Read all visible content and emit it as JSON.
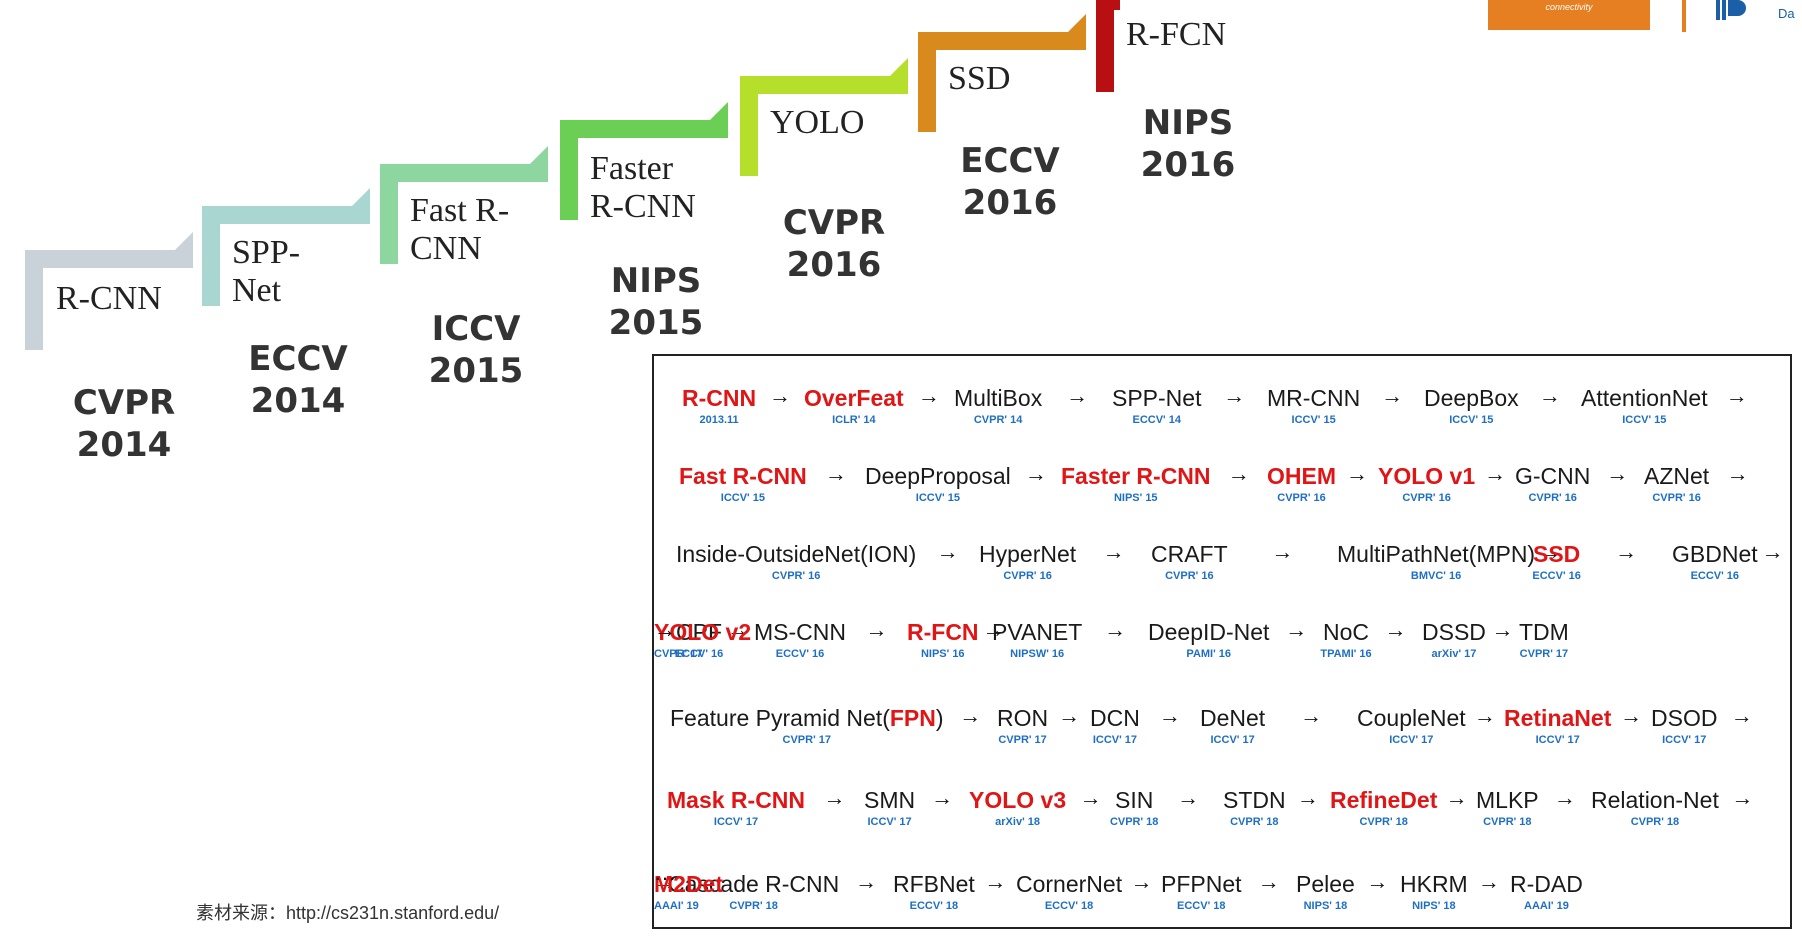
{
  "timeline": [
    {
      "name": [
        "R-CNN"
      ],
      "venue": [
        "CVPR",
        "2014"
      ],
      "color": "#c8d2d8"
    },
    {
      "name": [
        "SPP-",
        "Net"
      ],
      "venue": [
        "ECCV",
        "2014"
      ],
      "color": "#a9d6d0"
    },
    {
      "name": [
        "Fast R-",
        "CNN"
      ],
      "venue": [
        "ICCV",
        "2015"
      ],
      "color": "#8ed6a0"
    },
    {
      "name": [
        "Faster",
        "R-CNN"
      ],
      "venue": [
        "NIPS",
        "2015"
      ],
      "color": "#6ccf55"
    },
    {
      "name": [
        "YOLO"
      ],
      "venue": [
        "CVPR",
        "2016"
      ],
      "color": "#b5df2a"
    },
    {
      "name": [
        "SSD"
      ],
      "venue": [
        "ECCV",
        "2016"
      ],
      "color": "#d98a1c"
    },
    {
      "name": [
        "R-FCN"
      ],
      "venue": [
        "NIPS",
        "2016"
      ],
      "color": "#b80f12"
    }
  ],
  "network_list": {
    "rows": [
      [
        {
          "name": "R-CNN",
          "venue": "2013.11",
          "highlight": true
        },
        {
          "name": "OverFeat",
          "venue": "ICLR' 14",
          "highlight": true
        },
        {
          "name": "MultiBox",
          "venue": "CVPR' 14"
        },
        {
          "name": "SPP-Net",
          "venue": "ECCV' 14"
        },
        {
          "name": "MR-CNN",
          "venue": "ICCV' 15"
        },
        {
          "name": "DeepBox",
          "venue": "ICCV' 15"
        },
        {
          "name": "AttentionNet",
          "venue": "ICCV' 15"
        }
      ],
      [
        {
          "name": "Fast R-CNN",
          "venue": "ICCV' 15",
          "highlight": true
        },
        {
          "name": "DeepProposal",
          "venue": "ICCV' 15"
        },
        {
          "name": "Faster R-CNN",
          "venue": "NIPS' 15",
          "highlight": true
        },
        {
          "name": "OHEM",
          "venue": "CVPR' 16",
          "highlight": true
        },
        {
          "name": "YOLO v1",
          "venue": "CVPR' 16",
          "highlight": true
        },
        {
          "name": "G-CNN",
          "venue": "CVPR' 16"
        },
        {
          "name": "AZNet",
          "venue": "CVPR' 16"
        }
      ],
      [
        {
          "name": "Inside-OutsideNet(ION)",
          "venue": "CVPR' 16"
        },
        {
          "name": "HyperNet",
          "venue": "CVPR' 16"
        },
        {
          "name": "CRAFT",
          "venue": "CVPR' 16"
        },
        {
          "name": "MultiPathNet(MPN)",
          "venue": "BMVC' 16"
        },
        {
          "name": "SSD",
          "venue": "ECCV' 16",
          "highlight": true
        },
        {
          "name": "GBDNet",
          "venue": "ECCV' 16"
        }
      ],
      [
        {
          "name": "CPF",
          "venue": "ECCV' 16"
        },
        {
          "name": "MS-CNN",
          "venue": "ECCV' 16"
        },
        {
          "name": "R-FCN",
          "venue": "NIPS' 16",
          "highlight": true
        },
        {
          "name": "PVANET",
          "venue": "NIPSW' 16"
        },
        {
          "name": "DeepID-Net",
          "venue": "PAMI' 16"
        },
        {
          "name": "NoC",
          "venue": "TPAMI' 16"
        },
        {
          "name": "DSSD",
          "venue": "arXiv' 17"
        },
        {
          "name": "TDM",
          "venue": "CVPR' 17"
        },
        {
          "name": "YOLO v2",
          "venue": "CVPR' 17",
          "highlight": true
        }
      ],
      [
        {
          "name": "Feature Pyramid Net(",
          "name_red": "FPN",
          "name_after": ")",
          "venue": "CVPR' 17"
        },
        {
          "name": "RON",
          "venue": "CVPR' 17"
        },
        {
          "name": "DCN",
          "venue": "ICCV' 17"
        },
        {
          "name": "DeNet",
          "venue": "ICCV' 17"
        },
        {
          "name": "CoupleNet",
          "venue": "ICCV' 17"
        },
        {
          "name": "RetinaNet",
          "venue": "ICCV' 17",
          "highlight": true
        },
        {
          "name": "DSOD",
          "venue": "ICCV' 17"
        }
      ],
      [
        {
          "name": "Mask R-CNN",
          "venue": "ICCV' 17",
          "highlight": true
        },
        {
          "name": "SMN",
          "venue": "ICCV' 17"
        },
        {
          "name": "YOLO v3",
          "venue": "arXiv' 18",
          "highlight": true
        },
        {
          "name": "SIN",
          "venue": "CVPR' 18"
        },
        {
          "name": "STDN",
          "venue": "CVPR' 18"
        },
        {
          "name": "RefineDet",
          "venue": "CVPR' 18",
          "highlight": true
        },
        {
          "name": "MLKP",
          "venue": "CVPR' 18"
        },
        {
          "name": "Relation-Net",
          "venue": "CVPR' 18"
        }
      ],
      [
        {
          "name": "Cascade R-CNN",
          "venue": "CVPR' 18"
        },
        {
          "name": "RFBNet",
          "venue": "ECCV' 18"
        },
        {
          "name": "CornerNet",
          "venue": "ECCV' 18"
        },
        {
          "name": "PFPNet",
          "venue": "ECCV' 18"
        },
        {
          "name": "Pelee",
          "venue": "NIPS' 18"
        },
        {
          "name": "HKRM",
          "venue": "NIPS' 18"
        },
        {
          "name": "R-DAD",
          "venue": "AAAI' 19"
        },
        {
          "name": "M2Det",
          "venue": "AAAI' 19",
          "highlight": true
        }
      ]
    ],
    "arrow": "→",
    "ellipsis": "···"
  },
  "source_text": "素材来源：http://cs231n.stanford.edu/",
  "logo": {
    "tagline": "connectivity",
    "corner_text": "Da"
  },
  "colors": {
    "highlight": "#e01616",
    "venue": "#1e6fc4"
  }
}
